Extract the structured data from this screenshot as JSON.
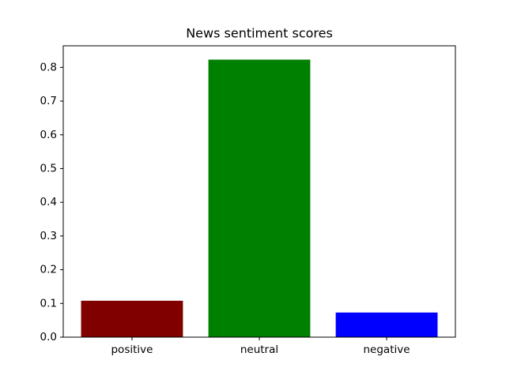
{
  "chart_data": {
    "type": "bar",
    "title": "News sentiment scores",
    "categories": [
      "positive",
      "neutral",
      "negative"
    ],
    "values": [
      0.108,
      0.823,
      0.073
    ],
    "colors": [
      "#800000",
      "#008000",
      "#0000ff"
    ],
    "ylim": [
      0,
      0.864
    ],
    "yticks": [
      {
        "value": 0,
        "label": "0.0"
      },
      0.1,
      0.2,
      0.3,
      0.4,
      0.5,
      0.6,
      0.7,
      0.8
    ],
    "grid": false
  }
}
